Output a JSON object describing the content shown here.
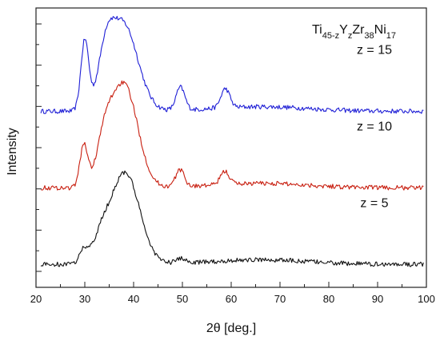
{
  "chart_data": {
    "type": "line",
    "title": {
      "parts": [
        {
          "text": "Ti",
          "sub": false
        },
        {
          "text": "45-z",
          "sub": true
        },
        {
          "text": "Y",
          "sub": false
        },
        {
          "text": "z",
          "sub": true
        },
        {
          "text": "Zr",
          "sub": false
        },
        {
          "text": "38",
          "sub": true
        },
        {
          "text": "Ni",
          "sub": false
        },
        {
          "text": "17",
          "sub": true
        }
      ]
    },
    "xlabel": "2θ [deg.]",
    "ylabel": "Intensity",
    "xlim": [
      20,
      100
    ],
    "xticks": [
      "20",
      "30",
      "40",
      "50",
      "60",
      "70",
      "80",
      "90",
      "100"
    ],
    "yticks_labeled": false,
    "grid": false,
    "series": [
      {
        "name": "z = 15",
        "color": "#1f1fd6",
        "offset": 2.0,
        "peaks": [
          {
            "x": 30.0,
            "h": 0.9,
            "w": 0.8
          },
          {
            "x": 34.3,
            "h": 0.5,
            "w": 1.5
          },
          {
            "x": 37.8,
            "h": 1.15,
            "w": 3.0
          },
          {
            "x": 49.6,
            "h": 0.3,
            "w": 0.9
          },
          {
            "x": 58.8,
            "h": 0.25,
            "w": 0.9
          }
        ]
      },
      {
        "name": "z = 10",
        "color": "#c81e0f",
        "offset": 1.0,
        "peaks": [
          {
            "x": 29.8,
            "h": 0.55,
            "w": 0.8
          },
          {
            "x": 34.0,
            "h": 0.45,
            "w": 1.6
          },
          {
            "x": 38.0,
            "h": 1.35,
            "w": 2.8
          },
          {
            "x": 49.5,
            "h": 0.22,
            "w": 0.9
          },
          {
            "x": 58.7,
            "h": 0.17,
            "w": 0.9
          }
        ]
      },
      {
        "name": "z = 5",
        "color": "#111111",
        "offset": 0.0,
        "peaks": [
          {
            "x": 29.8,
            "h": 0.18,
            "w": 0.9
          },
          {
            "x": 33.3,
            "h": 0.25,
            "w": 1.6
          },
          {
            "x": 38.2,
            "h": 1.2,
            "w": 3.0
          },
          {
            "x": 49.7,
            "h": 0.06,
            "w": 1.0
          }
        ]
      }
    ]
  }
}
